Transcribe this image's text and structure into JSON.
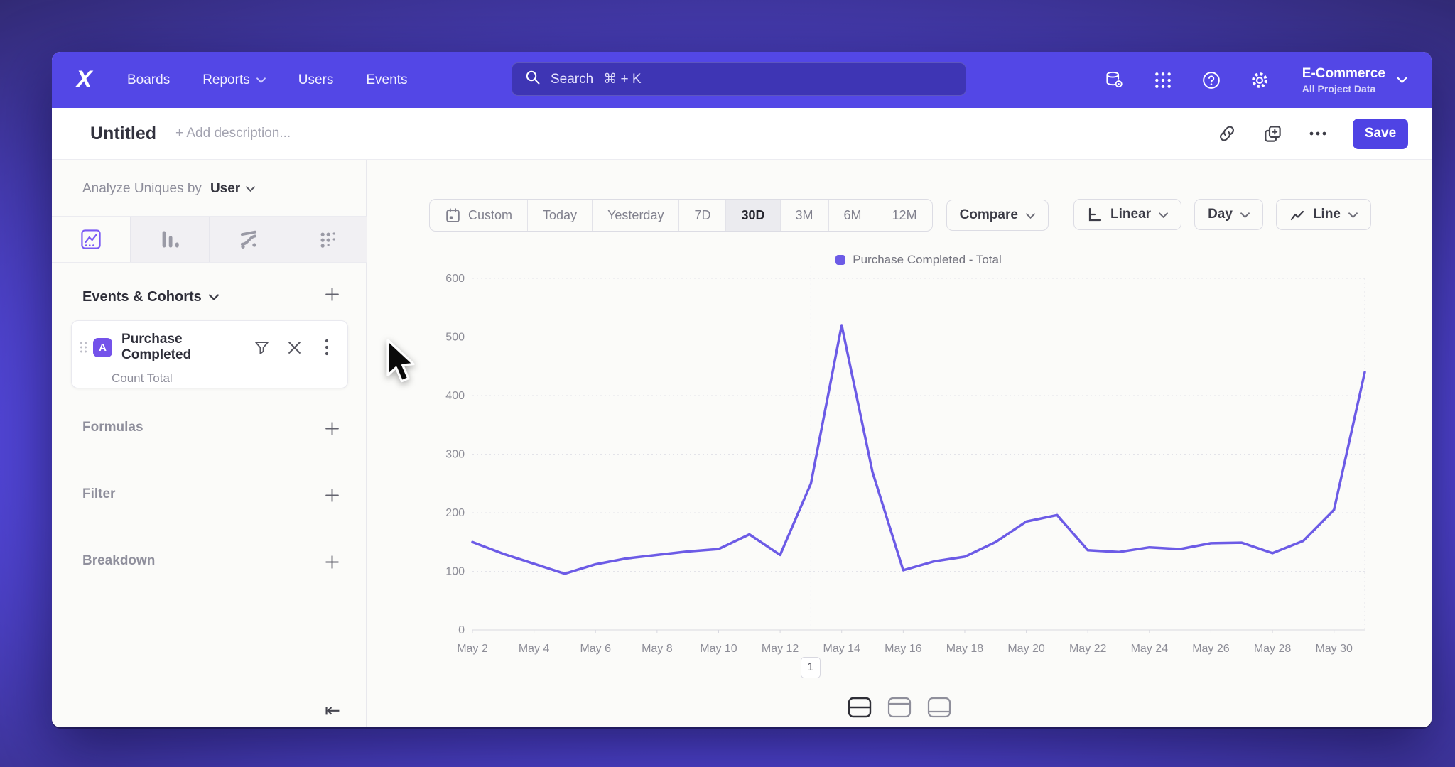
{
  "colors": {
    "accent": "#5347e6",
    "save": "#4f43e4",
    "badge": "#7452ea",
    "activetab": "#7a5af5",
    "line": "#6c5be6"
  },
  "navbar": {
    "logo": "X",
    "items": [
      {
        "label": "Boards",
        "chevron": false
      },
      {
        "label": "Reports",
        "chevron": true
      },
      {
        "label": "Users",
        "chevron": false
      },
      {
        "label": "Events",
        "chevron": false
      }
    ],
    "search": {
      "placeholder": "Search",
      "shortcut": "⌘ + K"
    },
    "icons": [
      "data-management-icon",
      "apps-grid-icon",
      "help-icon",
      "settings-icon"
    ],
    "project": {
      "name": "E-Commerce",
      "subtitle": "All Project Data"
    }
  },
  "titlebar": {
    "title": "Untitled",
    "description_placeholder": "+ Add description...",
    "actions": [
      "copy-link-icon",
      "duplicate-icon",
      "more-icon"
    ],
    "save_label": "Save"
  },
  "sidebar": {
    "analyze": {
      "prefix": "Analyze Uniques by",
      "value": "User"
    },
    "tabs": [
      {
        "name": "insights",
        "active": true
      },
      {
        "name": "funnels-bars",
        "active": false
      },
      {
        "name": "flows",
        "active": false
      },
      {
        "name": "retention",
        "active": false
      }
    ],
    "events_header": "Events & Cohorts",
    "event_card": {
      "badge": "A",
      "title": "Purchase Completed",
      "subtitle": "Count Total"
    },
    "sections": [
      {
        "label": "Formulas"
      },
      {
        "label": "Filter"
      },
      {
        "label": "Breakdown"
      }
    ]
  },
  "icons": {
    "collapse_sidebar": "⇤"
  },
  "toolbar": {
    "ranges": [
      "Custom",
      "Today",
      "Yesterday",
      "7D",
      "30D",
      "3M",
      "6M",
      "12M"
    ],
    "active_range": "30D",
    "compare_label": "Compare",
    "scale_label": "Linear",
    "interval_label": "Day",
    "chart_type_label": "Line"
  },
  "chart_data": {
    "type": "line",
    "title": "",
    "xlabel": "",
    "ylabel": "",
    "ylim": [
      0,
      600
    ],
    "yticks": [
      0,
      100,
      200,
      300,
      400,
      500,
      600
    ],
    "grid": "horizontal-dotted",
    "legend_position": "top-center",
    "vline_day": "May 13",
    "categories": [
      "May 2",
      "May 3",
      "May 4",
      "May 5",
      "May 6",
      "May 7",
      "May 8",
      "May 9",
      "May 10",
      "May 11",
      "May 12",
      "May 13",
      "May 14",
      "May 15",
      "May 16",
      "May 17",
      "May 18",
      "May 19",
      "May 20",
      "May 21",
      "May 22",
      "May 23",
      "May 24",
      "May 25",
      "May 26",
      "May 27",
      "May 28",
      "May 29",
      "May 30",
      "May 31"
    ],
    "xtick_every": 2,
    "series": [
      {
        "name": "Purchase Completed - Total",
        "color": "#6c5be6",
        "values": [
          150,
          130,
          113,
          96,
          112,
          122,
          128,
          134,
          138,
          163,
          128,
          250,
          520,
          270,
          102,
          117,
          125,
          150,
          185,
          196,
          136,
          133,
          141,
          138,
          148,
          149,
          131,
          152,
          205,
          440
        ]
      }
    ]
  },
  "pagination": {
    "page": "1"
  },
  "footer": {
    "layouts": [
      "split-horizontal",
      "panel-top",
      "panel-bottom"
    ],
    "active": "split-horizontal"
  }
}
